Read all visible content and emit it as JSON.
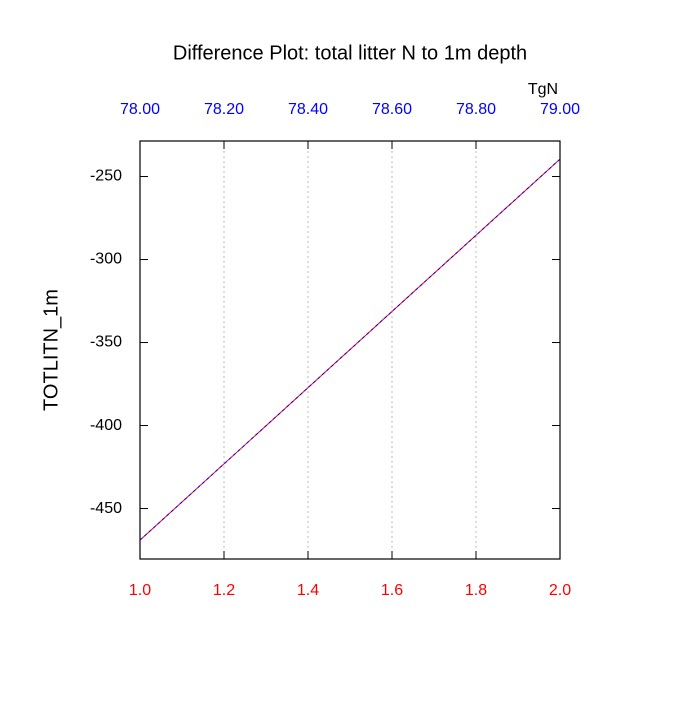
{
  "chart_data": {
    "type": "line",
    "title": "Difference Plot: total litter N to 1m depth",
    "y_label": "TOTLITN_1m",
    "x2_label": "TgN",
    "x": [
      1,
      2
    ],
    "series": [
      {
        "color": "#ff0000",
        "values": [
          -469,
          -239.5
        ]
      },
      {
        "color": "#0000ff",
        "values": [
          -469,
          -239.5
        ]
      }
    ],
    "xlim": [
      1,
      2
    ],
    "xticks": [
      {
        "value": 1,
        "label": "1.0"
      },
      {
        "value": 1.2,
        "label": "1.2"
      },
      {
        "value": 1.4,
        "label": "1.4"
      },
      {
        "value": 1.6,
        "label": "1.6"
      },
      {
        "value": 1.8,
        "label": "1.8"
      },
      {
        "value": 2,
        "label": "2.0"
      }
    ],
    "xtick_color": "#ff0000",
    "x2lim": [
      78,
      79
    ],
    "x2ticks": [
      {
        "value": 78,
        "label": "78.00"
      },
      {
        "value": 78.2,
        "label": "78.20"
      },
      {
        "value": 78.4,
        "label": "78.40"
      },
      {
        "value": 78.6,
        "label": "78.60"
      },
      {
        "value": 78.8,
        "label": "78.80"
      },
      {
        "value": 79,
        "label": "79.00"
      }
    ],
    "x2tick_color": "#0000ff",
    "ylim": [
      -480.4,
      -228.6
    ],
    "yticks": [
      -250,
      -300,
      -350,
      -400,
      -450
    ],
    "grid": true
  }
}
